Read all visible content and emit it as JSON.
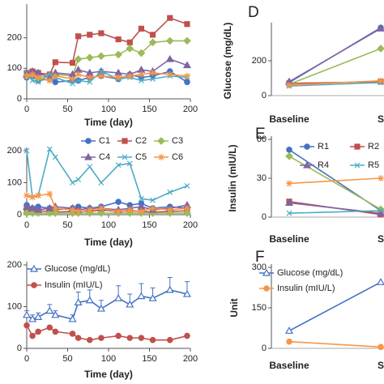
{
  "chart_data": [
    {
      "type": "line",
      "xlabel": "Time (day)",
      "x": [
        0,
        7,
        14,
        28,
        35,
        56,
        63,
        77,
        91,
        112,
        126,
        140,
        154,
        175,
        196
      ],
      "xlim": [
        0,
        200
      ],
      "xticks": [
        0,
        50,
        100,
        150,
        200
      ],
      "ylim": [
        0,
        300
      ],
      "yticks": [
        0,
        100,
        200
      ],
      "series": [
        {
          "color": "#4472c4",
          "marker": "circle",
          "values": [
            70,
            75,
            60,
            65,
            55,
            60,
            60,
            70,
            75,
            65,
            80,
            70,
            75,
            90,
            55
          ]
        },
        {
          "color": "#c0504d",
          "marker": "square",
          "values": [
            85,
            90,
            85,
            80,
            120,
            118,
            205,
            210,
            215,
            195,
            185,
            230,
            210,
            265,
            245
          ]
        },
        {
          "color": "#9bbb59",
          "marker": "diamond",
          "values": [
            75,
            80,
            70,
            75,
            80,
            75,
            130,
            135,
            140,
            145,
            165,
            150,
            185,
            190,
            190
          ]
        },
        {
          "color": "#8064a2",
          "marker": "triangle",
          "values": [
            80,
            90,
            85,
            70,
            85,
            80,
            95,
            85,
            90,
            85,
            80,
            95,
            90,
            130,
            110
          ]
        },
        {
          "color": "#4bacc6",
          "marker": "x",
          "values": [
            85,
            60,
            55,
            80,
            70,
            50,
            60,
            55,
            90,
            65,
            70,
            60,
            65,
            75,
            70
          ]
        },
        {
          "color": "#f79646",
          "marker": "star",
          "values": [
            75,
            80,
            70,
            60,
            75,
            65,
            80,
            70,
            75,
            70,
            75,
            80,
            85,
            80,
            75
          ]
        }
      ]
    },
    {
      "type": "line",
      "xlabel": "Time (day)",
      "x": [
        0,
        7,
        14,
        28,
        35,
        56,
        63,
        77,
        91,
        112,
        126,
        140,
        154,
        175,
        196
      ],
      "xlim": [
        0,
        200
      ],
      "xticks": [
        0,
        50,
        100,
        150,
        200
      ],
      "ylim": [
        0,
        200
      ],
      "yticks": [
        0,
        100,
        200
      ],
      "series": [
        {
          "name": "C1",
          "color": "#4472c4",
          "marker": "circle",
          "values": [
            30,
            20,
            25,
            20,
            15,
            20,
            25,
            20,
            25,
            40,
            30,
            35,
            20,
            25,
            20
          ]
        },
        {
          "name": "C2",
          "color": "#c0504d",
          "marker": "square",
          "values": [
            15,
            10,
            12,
            10,
            8,
            10,
            12,
            10,
            15,
            10,
            12,
            10,
            8,
            10,
            12
          ]
        },
        {
          "name": "C3",
          "color": "#9bbb59",
          "marker": "diamond",
          "values": [
            5,
            5,
            5,
            5,
            5,
            5,
            5,
            5,
            5,
            5,
            5,
            5,
            5,
            5,
            5
          ]
        },
        {
          "name": "C4",
          "color": "#8064a2",
          "marker": "triangle",
          "values": [
            25,
            20,
            15,
            20,
            25,
            20,
            15,
            20,
            20,
            15,
            20,
            25,
            15,
            20,
            30
          ]
        },
        {
          "name": "C5",
          "color": "#4bacc6",
          "marker": "x",
          "values": [
            200,
            55,
            60,
            205,
            180,
            100,
            110,
            150,
            100,
            155,
            160,
            50,
            45,
            70,
            90
          ]
        },
        {
          "name": "C6",
          "color": "#f79646",
          "marker": "star",
          "values": [
            60,
            55,
            60,
            65,
            20,
            15,
            10,
            15,
            20,
            10,
            15,
            10,
            20,
            15,
            20
          ]
        }
      ]
    },
    {
      "type": "line",
      "xlabel": "Time (day)",
      "x": [
        0,
        7,
        14,
        28,
        35,
        56,
        63,
        77,
        91,
        112,
        126,
        140,
        154,
        175,
        196
      ],
      "xlim": [
        0,
        200
      ],
      "xticks": [
        0,
        50,
        100,
        150,
        200
      ],
      "ylim": [
        0,
        200
      ],
      "yticks": [
        0,
        100,
        200
      ],
      "series": [
        {
          "name": "Glucose (mg/dL)",
          "color": "#4472c4",
          "marker": "triangle",
          "open": true,
          "values": [
            80,
            70,
            75,
            90,
            80,
            70,
            110,
            115,
            95,
            120,
            105,
            125,
            120,
            140,
            130
          ],
          "errors": [
            10,
            10,
            10,
            15,
            10,
            10,
            25,
            25,
            20,
            30,
            25,
            30,
            25,
            30,
            30
          ]
        },
        {
          "name": "Insulin (mIU/L)",
          "color": "#c0504d",
          "marker": "circle",
          "values": [
            55,
            30,
            40,
            50,
            40,
            35,
            25,
            20,
            25,
            30,
            25,
            25,
            20,
            20,
            30
          ]
        }
      ]
    },
    {
      "type": "line",
      "panel_label": "D",
      "ylabel": "Glucose (mg/dL)",
      "categories": [
        "Baseline",
        "S"
      ],
      "ylim": [
        0,
        400
      ],
      "yticks": [
        0,
        200
      ],
      "series": [
        {
          "color": "#4472c4",
          "marker": "circle",
          "values": [
            75,
            390
          ]
        },
        {
          "color": "#c0504d",
          "marker": "square",
          "values": [
            70,
            80
          ]
        },
        {
          "color": "#9bbb59",
          "marker": "diamond",
          "values": [
            65,
            270
          ]
        },
        {
          "color": "#8064a2",
          "marker": "triangle",
          "values": [
            80,
            385
          ]
        },
        {
          "color": "#4bacc6",
          "marker": "x",
          "values": [
            55,
            75
          ]
        },
        {
          "color": "#f79646",
          "marker": "star",
          "values": [
            60,
            85
          ]
        }
      ]
    },
    {
      "type": "line",
      "panel_label": "E",
      "ylabel": "Insulin (mIU/L)",
      "categories": [
        "Baseline",
        "S"
      ],
      "ylim": [
        0,
        60
      ],
      "yticks": [
        0,
        30,
        60
      ],
      "series": [
        {
          "name": "R1",
          "color": "#4472c4",
          "marker": "circle",
          "values": [
            52,
            5
          ]
        },
        {
          "name": "R2",
          "color": "#c0504d",
          "marker": "square",
          "values": [
            12,
            2
          ]
        },
        {
          "color": "#9bbb59",
          "marker": "diamond",
          "values": [
            47,
            6
          ]
        },
        {
          "name": "R4",
          "color": "#8064a2",
          "marker": "triangle",
          "values": [
            11,
            3
          ]
        },
        {
          "name": "R5",
          "color": "#4bacc6",
          "marker": "x",
          "values": [
            3,
            5
          ]
        },
        {
          "color": "#f79646",
          "marker": "star",
          "values": [
            26,
            30
          ]
        }
      ]
    },
    {
      "type": "line",
      "panel_label": "F",
      "ylabel": "Unit",
      "categories": [
        "Baseline",
        "S"
      ],
      "ylim": [
        0,
        300
      ],
      "yticks": [
        0,
        150,
        300
      ],
      "series": [
        {
          "name": "Glucose (mg/dL)",
          "color": "#4472c4",
          "marker": "triangle",
          "open": true,
          "values": [
            65,
            245
          ]
        },
        {
          "name": "Insulin (mIU/L)",
          "color": "#f79646",
          "marker": "circle",
          "values": [
            25,
            5
          ]
        }
      ]
    }
  ]
}
